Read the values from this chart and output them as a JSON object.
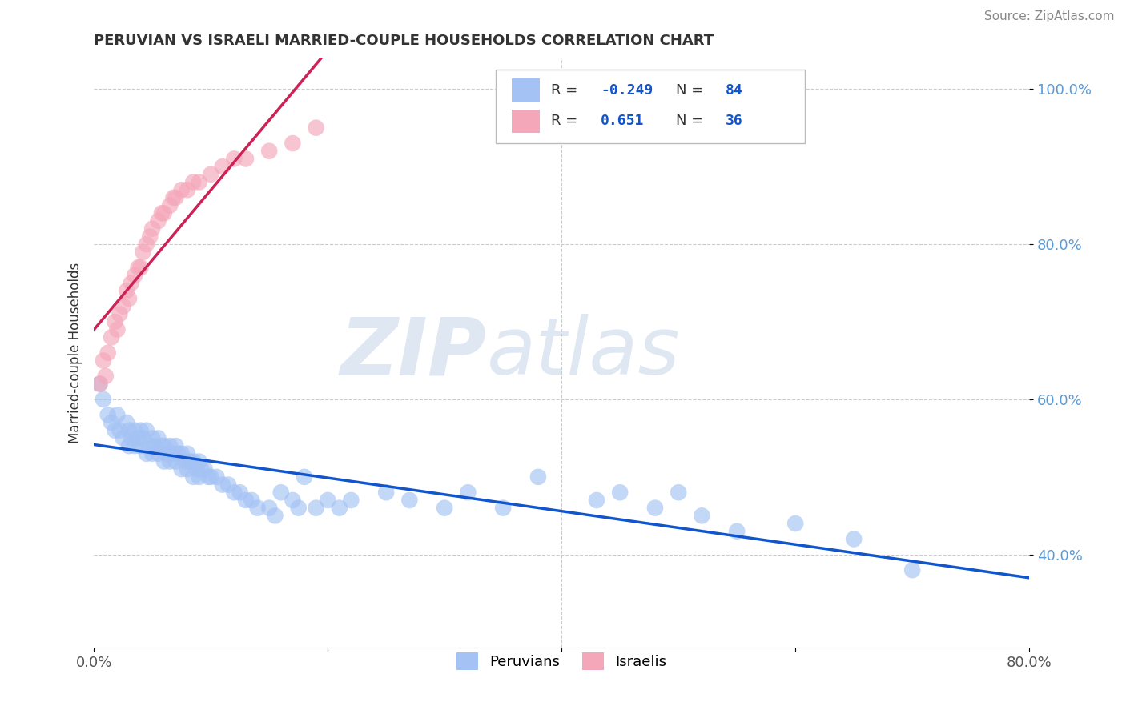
{
  "title": "PERUVIAN VS ISRAELI MARRIED-COUPLE HOUSEHOLDS CORRELATION CHART",
  "source": "Source: ZipAtlas.com",
  "ylabel": "Married-couple Households",
  "watermark_zip": "ZIP",
  "watermark_atlas": "atlas",
  "legend_labels": [
    "Peruvians",
    "Israelis"
  ],
  "peruvian_R": -0.249,
  "peruvian_N": 84,
  "israeli_R": 0.651,
  "israeli_N": 36,
  "peruvian_color": "#a4c2f4",
  "israeli_color": "#f4a7b9",
  "peruvian_line_color": "#1155cc",
  "israeli_line_color": "#cc2255",
  "xlim": [
    0.0,
    0.8
  ],
  "ylim": [
    0.28,
    1.04
  ],
  "x_ticks": [
    0.0,
    0.2,
    0.4,
    0.6,
    0.8
  ],
  "x_tick_labels": [
    "0.0%",
    "",
    "",
    "",
    "80.0%"
  ],
  "y_ticks": [
    0.4,
    0.6,
    0.8,
    1.0
  ],
  "y_tick_labels": [
    "40.0%",
    "60.0%",
    "80.0%",
    "100.0%"
  ],
  "peruvians_x": [
    0.005,
    0.008,
    0.012,
    0.015,
    0.018,
    0.02,
    0.022,
    0.025,
    0.028,
    0.03,
    0.03,
    0.032,
    0.035,
    0.035,
    0.038,
    0.04,
    0.04,
    0.042,
    0.045,
    0.045,
    0.048,
    0.05,
    0.05,
    0.052,
    0.055,
    0.055,
    0.058,
    0.06,
    0.06,
    0.062,
    0.065,
    0.065,
    0.068,
    0.07,
    0.07,
    0.072,
    0.075,
    0.075,
    0.078,
    0.08,
    0.08,
    0.082,
    0.085,
    0.085,
    0.088,
    0.09,
    0.09,
    0.092,
    0.095,
    0.098,
    0.1,
    0.105,
    0.11,
    0.115,
    0.12,
    0.125,
    0.13,
    0.135,
    0.14,
    0.15,
    0.155,
    0.16,
    0.17,
    0.175,
    0.18,
    0.19,
    0.2,
    0.21,
    0.22,
    0.25,
    0.27,
    0.3,
    0.32,
    0.35,
    0.38,
    0.43,
    0.45,
    0.48,
    0.5,
    0.52,
    0.55,
    0.6,
    0.65,
    0.7
  ],
  "peruvians_y": [
    0.62,
    0.6,
    0.58,
    0.57,
    0.56,
    0.58,
    0.56,
    0.55,
    0.57,
    0.56,
    0.54,
    0.55,
    0.56,
    0.54,
    0.55,
    0.56,
    0.54,
    0.55,
    0.56,
    0.53,
    0.54,
    0.55,
    0.53,
    0.54,
    0.55,
    0.53,
    0.54,
    0.54,
    0.52,
    0.53,
    0.54,
    0.52,
    0.53,
    0.54,
    0.52,
    0.53,
    0.53,
    0.51,
    0.52,
    0.53,
    0.51,
    0.52,
    0.52,
    0.5,
    0.51,
    0.52,
    0.5,
    0.51,
    0.51,
    0.5,
    0.5,
    0.5,
    0.49,
    0.49,
    0.48,
    0.48,
    0.47,
    0.47,
    0.46,
    0.46,
    0.45,
    0.48,
    0.47,
    0.46,
    0.5,
    0.46,
    0.47,
    0.46,
    0.47,
    0.48,
    0.47,
    0.46,
    0.48,
    0.46,
    0.5,
    0.47,
    0.48,
    0.46,
    0.48,
    0.45,
    0.43,
    0.44,
    0.42,
    0.38
  ],
  "israelis_x": [
    0.005,
    0.008,
    0.01,
    0.012,
    0.015,
    0.018,
    0.02,
    0.022,
    0.025,
    0.028,
    0.03,
    0.032,
    0.035,
    0.038,
    0.04,
    0.042,
    0.045,
    0.048,
    0.05,
    0.055,
    0.058,
    0.06,
    0.065,
    0.068,
    0.07,
    0.075,
    0.08,
    0.085,
    0.09,
    0.1,
    0.11,
    0.12,
    0.13,
    0.15,
    0.17,
    0.19
  ],
  "israelis_y": [
    0.62,
    0.65,
    0.63,
    0.66,
    0.68,
    0.7,
    0.69,
    0.71,
    0.72,
    0.74,
    0.73,
    0.75,
    0.76,
    0.77,
    0.77,
    0.79,
    0.8,
    0.81,
    0.82,
    0.83,
    0.84,
    0.84,
    0.85,
    0.86,
    0.86,
    0.87,
    0.87,
    0.88,
    0.88,
    0.89,
    0.9,
    0.91,
    0.91,
    0.92,
    0.93,
    0.95
  ]
}
